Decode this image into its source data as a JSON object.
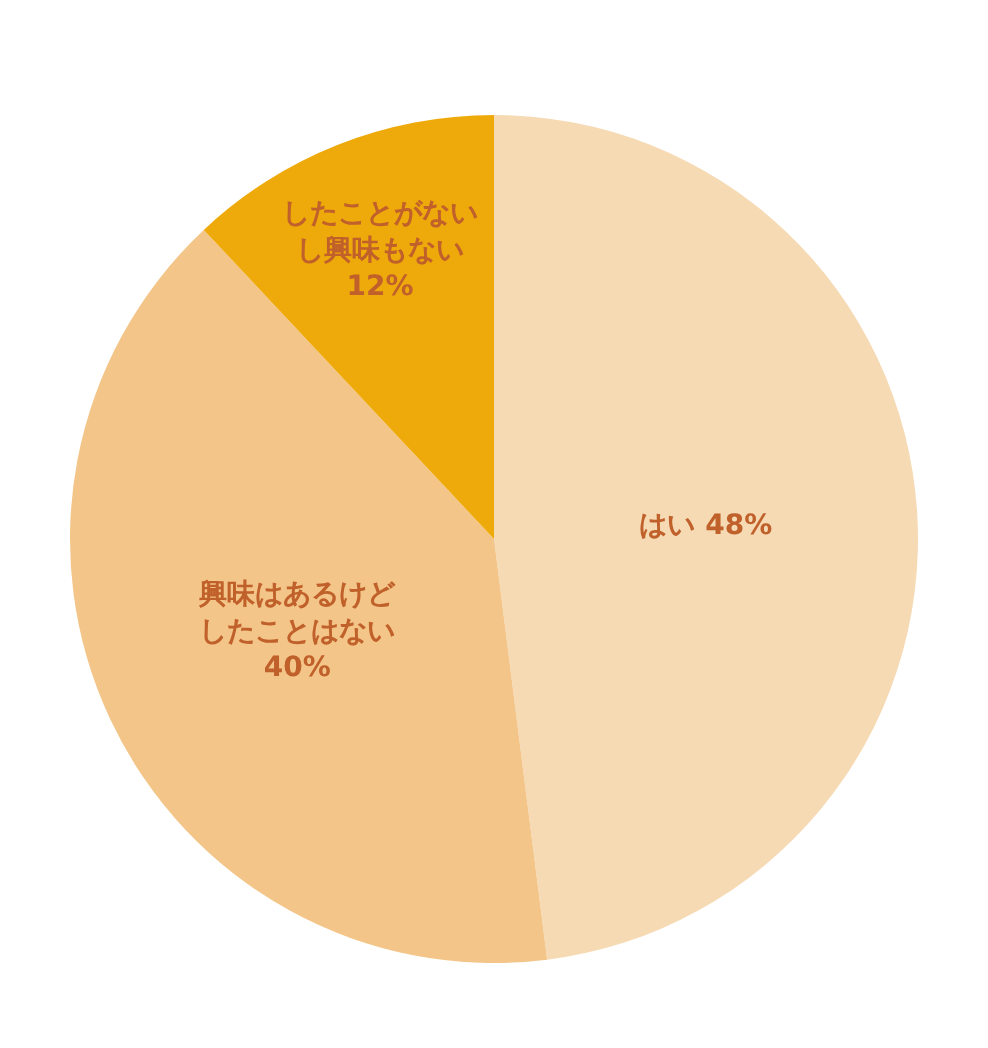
{
  "chart_data": {
    "type": "pie",
    "categories": [
      "はい",
      "興味はあるけどしたことはない",
      "したことがないし興味もない"
    ],
    "values": [
      48,
      40,
      12
    ],
    "colors": [
      "#f6dab4",
      "#f3c588",
      "#eeaa0a"
    ],
    "value_labels": [
      "48%",
      "40%",
      "12%"
    ],
    "legend": false
  }
}
